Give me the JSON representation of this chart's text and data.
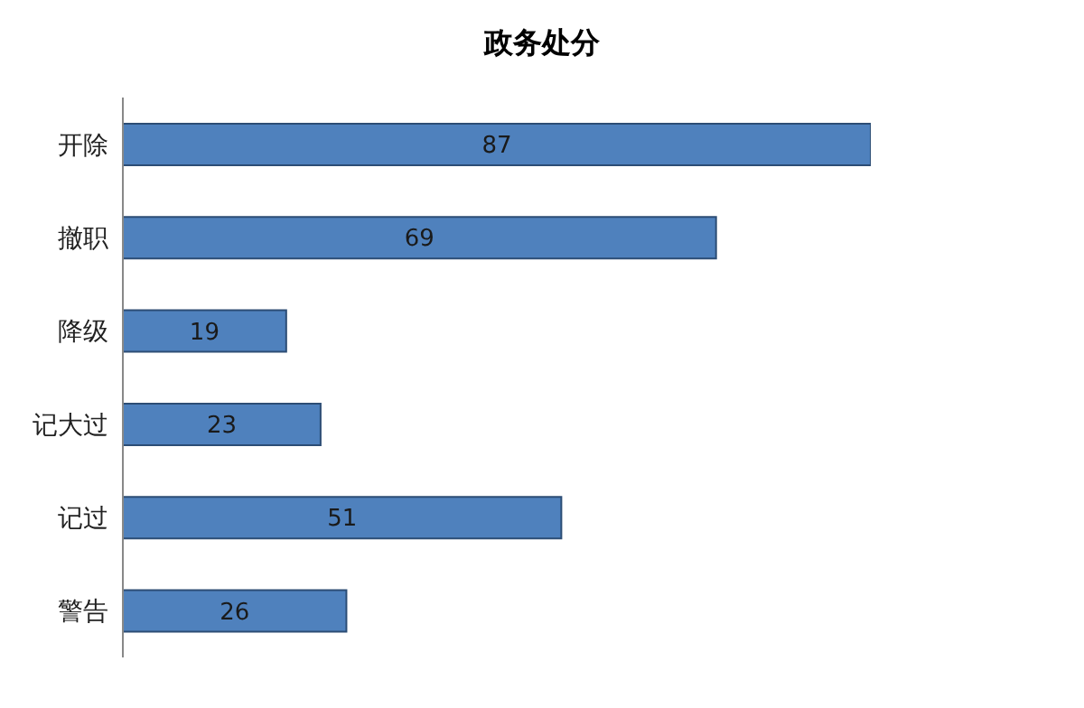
{
  "chart_data": {
    "type": "bar",
    "orientation": "horizontal",
    "title": "政务处分",
    "categories": [
      "开除",
      "撤职",
      "降级",
      "记大过",
      "记过",
      "警告"
    ],
    "values": [
      87,
      69,
      19,
      23,
      51,
      26
    ],
    "color": "#4f81bd",
    "data_labels": true,
    "grid": false,
    "legend": false
  }
}
